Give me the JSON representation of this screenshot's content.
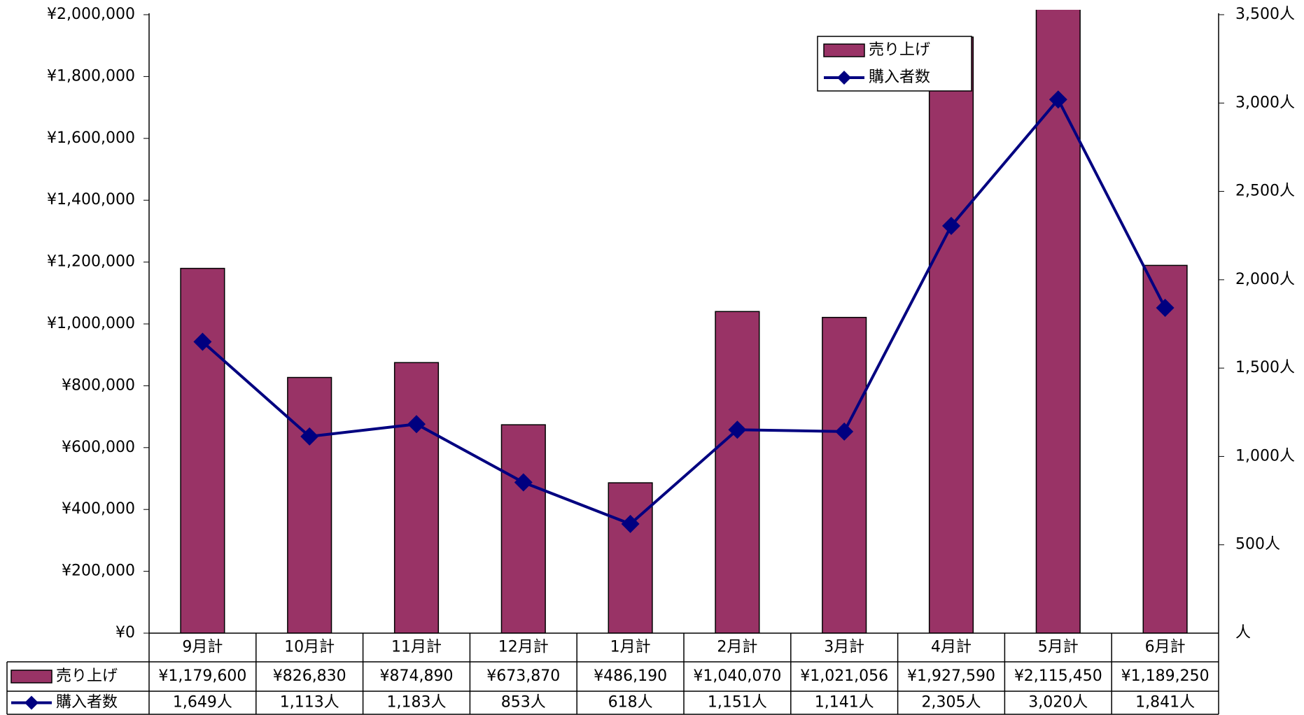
{
  "chart_data": {
    "type": "bar_line",
    "categories": [
      "9月計",
      "10月計",
      "11月計",
      "12月計",
      "1月計",
      "2月計",
      "3月計",
      "4月計",
      "5月計",
      "6月計"
    ],
    "series": [
      {
        "name": "売り上げ",
        "type": "bar",
        "color": "#993366",
        "axis": "y",
        "values": [
          1179600,
          826830,
          874890,
          673870,
          486190,
          1040070,
          1021056,
          1927590,
          2115450,
          1189250
        ],
        "value_labels": [
          "¥1,179,600",
          "¥826,830",
          "¥874,890",
          "¥673,870",
          "¥486,190",
          "¥1,040,070",
          "¥1,021,056",
          "¥1,927,590",
          "¥2,115,450",
          "¥1,189,250"
        ]
      },
      {
        "name": "購入者数",
        "type": "line",
        "color": "#000080",
        "axis": "y2",
        "values": [
          1649,
          1113,
          1183,
          853,
          618,
          1151,
          1141,
          2305,
          3020,
          1841
        ],
        "value_labels": [
          "1,649人",
          "1,113人",
          "1,183人",
          "853人",
          "618人",
          "1,151人",
          "1,141人",
          "2,305人",
          "3,020人",
          "1,841人"
        ]
      }
    ],
    "ylim": [
      0,
      2000000
    ],
    "yticks": [
      {
        "value": 0,
        "label": "¥0"
      },
      {
        "value": 200000,
        "label": "¥200,000"
      },
      {
        "value": 400000,
        "label": "¥400,000"
      },
      {
        "value": 600000,
        "label": "¥600,000"
      },
      {
        "value": 800000,
        "label": "¥800,000"
      },
      {
        "value": 1000000,
        "label": "¥1,000,000"
      },
      {
        "value": 1200000,
        "label": "¥1,200,000"
      },
      {
        "value": 1400000,
        "label": "¥1,400,000"
      },
      {
        "value": 1600000,
        "label": "¥1,600,000"
      },
      {
        "value": 1800000,
        "label": "¥1,800,000"
      },
      {
        "value": 2000000,
        "label": "¥2,000,000"
      }
    ],
    "y2lim": [
      0,
      3500
    ],
    "y2ticks": [
      {
        "value": 0,
        "label": "人"
      },
      {
        "value": 500,
        "label": "500人"
      },
      {
        "value": 1000,
        "label": "1,000人"
      },
      {
        "value": 1500,
        "label": "1,500人"
      },
      {
        "value": 2000,
        "label": "2,000人"
      },
      {
        "value": 2500,
        "label": "2,500人"
      },
      {
        "value": 3000,
        "label": "3,000人"
      },
      {
        "value": 3500,
        "label": "3,500人"
      }
    ],
    "grid": false,
    "legend": "upper right"
  }
}
